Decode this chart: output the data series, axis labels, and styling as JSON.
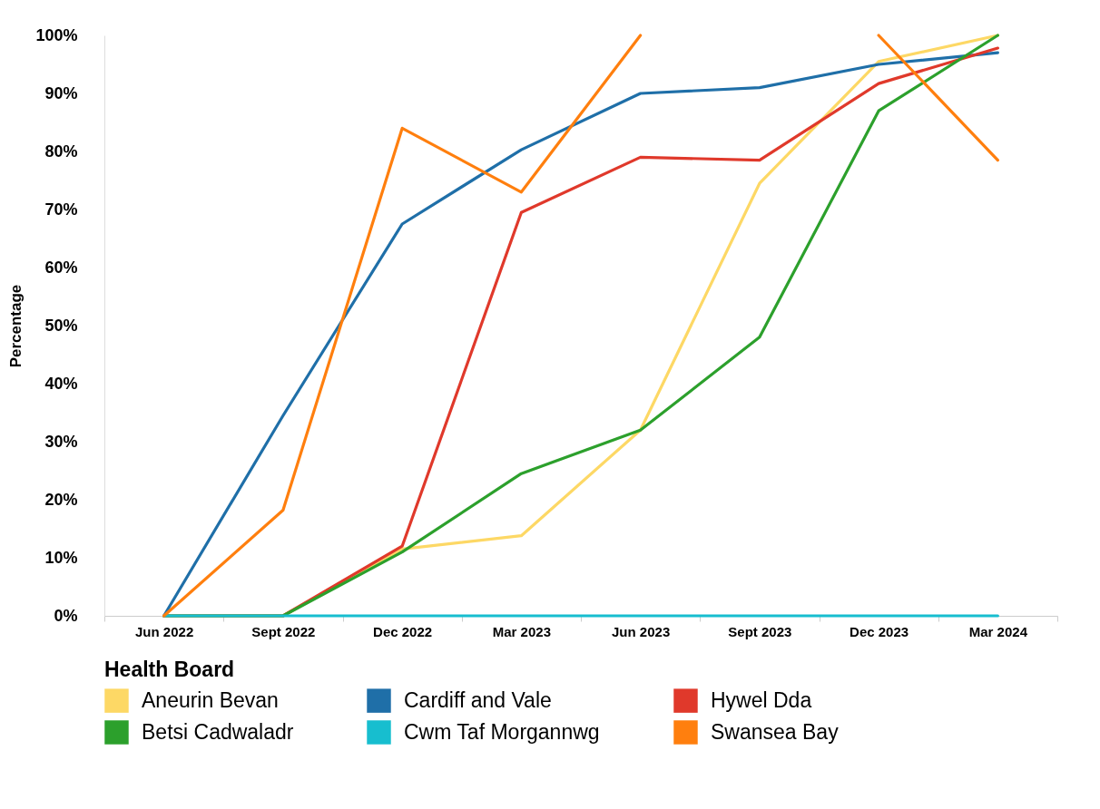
{
  "chart_data": {
    "type": "line",
    "ylabel": "Percentage",
    "legend_title": "Health Board",
    "legend": "bottom",
    "grid": false,
    "line_style": "solid",
    "marker": "none",
    "categories": [
      "Jun 2022",
      "Sept 2022",
      "Dec 2022",
      "Mar 2023",
      "Jun 2023",
      "Sept 2023",
      "Dec 2023",
      "Mar 2024"
    ],
    "ylim": [
      0,
      100
    ],
    "yticks": [
      {
        "value": 0,
        "label": "0%"
      },
      {
        "value": 10,
        "label": "10%"
      },
      {
        "value": 20,
        "label": "20%"
      },
      {
        "value": 30,
        "label": "30%"
      },
      {
        "value": 40,
        "label": "40%"
      },
      {
        "value": 50,
        "label": "50%"
      },
      {
        "value": 60,
        "label": "60%"
      },
      {
        "value": 70,
        "label": "70%"
      },
      {
        "value": 80,
        "label": "80%"
      },
      {
        "value": 90,
        "label": "90%"
      },
      {
        "value": 100,
        "label": "100%"
      }
    ],
    "series": [
      {
        "name": "Aneurin Bevan",
        "color": "#fdd865",
        "values": [
          0,
          0,
          11.5,
          13.8,
          32,
          74.5,
          95.5,
          100
        ]
      },
      {
        "name": "Cardiff and Vale",
        "color": "#1f6fa8",
        "values": [
          0,
          34.5,
          67.5,
          80.3,
          90,
          91,
          95,
          97
        ]
      },
      {
        "name": "Hywel Dda",
        "color": "#e0392b",
        "values": [
          0,
          0,
          12,
          69.5,
          79,
          78.5,
          91.7,
          97.8
        ]
      },
      {
        "name": "Betsi Cadwaladr",
        "color": "#2ca02c",
        "values": [
          0,
          0,
          11,
          24.5,
          32,
          48,
          87,
          100
        ]
      },
      {
        "name": "Cwm Taf Morgannwg",
        "color": "#17becf",
        "values": [
          0,
          0,
          0,
          0,
          0,
          0,
          0,
          0
        ]
      },
      {
        "name": "Swansea Bay",
        "color": "#ff7f0e",
        "values": [
          0,
          18.2,
          84,
          73,
          100,
          null,
          100,
          78.5
        ]
      }
    ]
  }
}
